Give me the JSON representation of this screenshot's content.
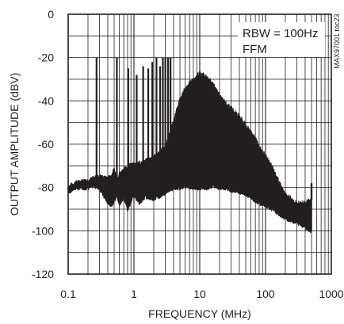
{
  "chart_data": {
    "type": "line",
    "title": "",
    "xlabel": "FREQUENCY (MHz)",
    "ylabel": "OUTPUT AMPLITUDE (dBV)",
    "xscale": "log",
    "xlim": [
      0.1,
      1000
    ],
    "ylim": [
      -120,
      0
    ],
    "x_ticks": [
      0.1,
      1,
      10,
      100,
      1000
    ],
    "x_tick_labels": [
      "0.1",
      "1",
      "10",
      "100",
      "1000"
    ],
    "y_ticks": [
      0,
      -20,
      -40,
      -60,
      -80,
      -100,
      -120
    ],
    "y_tick_labels": [
      "0",
      "-20",
      "-40",
      "-60",
      "-80",
      "-100",
      "-120"
    ],
    "grid": true,
    "legend": "none",
    "line_color": "#231f20",
    "annotations": [
      "RBW = 100Hz",
      "FFM"
    ],
    "figure_id": "MAX97001 toc23",
    "series": [
      {
        "envelope_upper": {
          "x": [
            0.1,
            0.13,
            0.17,
            0.2,
            0.24,
            0.3,
            0.38,
            0.45,
            0.5,
            0.55,
            0.6,
            0.7,
            0.8,
            0.9,
            1.0,
            1.2,
            1.5,
            2.0,
            2.5,
            3.0,
            4.0,
            5.0,
            6.0,
            8.0,
            10,
            13,
            16,
            20,
            25,
            30,
            40,
            50,
            60,
            70,
            80,
            100,
            130,
            160,
            200,
            300,
            400,
            500
          ],
          "y": [
            -80,
            -78,
            -77,
            -77,
            -76,
            -75,
            -76,
            -75,
            -72,
            -76,
            -74,
            -72,
            -71,
            -69,
            -70,
            -69,
            -68,
            -66,
            -64,
            -62,
            -50,
            -40,
            -35,
            -31,
            -28,
            -30,
            -33,
            -38,
            -42,
            -44,
            -48,
            -52,
            -55,
            -58,
            -62,
            -66,
            -72,
            -78,
            -84,
            -88,
            -88,
            -86
          ]
        },
        "envelope_lower": {
          "x": [
            0.1,
            0.13,
            0.17,
            0.2,
            0.24,
            0.3,
            0.38,
            0.45,
            0.5,
            0.55,
            0.6,
            0.7,
            0.8,
            0.9,
            1.0,
            1.2,
            1.5,
            2.0,
            2.5,
            3.0,
            4.0,
            5.0,
            6.0,
            8.0,
            10,
            13,
            16,
            20,
            25,
            30,
            40,
            50,
            60,
            70,
            80,
            100,
            130,
            160,
            200,
            300,
            400,
            500
          ],
          "y": [
            -82,
            -80,
            -80,
            -80,
            -79,
            -80,
            -86,
            -88,
            -86,
            -83,
            -88,
            -84,
            -90,
            -86,
            -83,
            -87,
            -84,
            -85,
            -84,
            -82,
            -80,
            -80,
            -79,
            -80,
            -80,
            -80,
            -79,
            -80,
            -80,
            -81,
            -82,
            -83,
            -84,
            -86,
            -87,
            -88,
            -90,
            -92,
            -94,
            -96,
            -98,
            -100
          ]
        },
        "spikes": {
          "x": [
            0.27,
            0.55,
            0.82,
            1.1,
            1.38,
            1.65,
            1.9,
            2.2,
            2.5,
            2.75,
            3.0,
            3.3,
            3.6
          ],
          "y": [
            -20,
            -20,
            -25,
            -28,
            -24,
            -25,
            -22,
            -20,
            -24,
            -20,
            -20,
            -20,
            -20
          ]
        },
        "end_spike": {
          "x": 500,
          "y": -78
        }
      }
    ]
  }
}
